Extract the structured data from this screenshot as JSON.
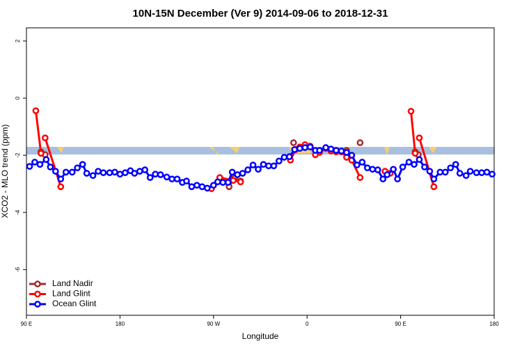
{
  "chart_data": {
    "type": "line",
    "title": "10N-15N December (Ver 9)   2014-09-06 to 2018-12-31",
    "x_label": "Longitude",
    "y_label": "XCO2 - MLO trend (ppm)",
    "xlim": [
      90,
      540
    ],
    "xticks": [
      {
        "value": 90,
        "label": "90 E"
      },
      180,
      {
        "value": 270,
        "label": "90 W"
      },
      {
        "value": 360,
        "label": "0"
      },
      {
        "value": 450,
        "label": "90 E"
      },
      {
        "value": 540,
        "label": "180"
      }
    ],
    "ylim": [
      -7.6,
      2.46
    ],
    "yticks": [
      2,
      0,
      -2,
      -4,
      -6
    ],
    "legend": "bottom-left",
    "series": [
      {
        "name": "Land Nadir",
        "color": "#a52a2a",
        "x": [
          104,
          108,
          null,
          285,
          290,
          296,
          null,
          347,
          null,
          398,
          null,
          411,
          null,
          464,
          467
        ],
        "values": [
          -1.88,
          -1.98,
          null,
          -3.1,
          -2.8,
          -2.9,
          null,
          -1.56,
          null,
          -1.83,
          null,
          -1.56,
          null,
          -1.88,
          -1.98
        ]
      },
      {
        "name": "Land Glint",
        "color": "#ff0000",
        "x": [
          99,
          104,
          null,
          108,
          123,
          null,
          268,
          276,
          289,
          296,
          null,
          344,
          349,
          353,
          358,
          363,
          368,
          372,
          378,
          383,
          388,
          393,
          398,
          403,
          411,
          null,
          435,
          440,
          null,
          460,
          464,
          null,
          468,
          482
        ],
        "values": [
          -0.44,
          -1.93,
          null,
          -1.39,
          -3.1,
          null,
          -3.17,
          -2.78,
          -2.88,
          -2.93,
          null,
          -2.17,
          -1.8,
          -1.71,
          -1.63,
          -1.68,
          -1.98,
          -1.9,
          -1.76,
          -1.85,
          -1.88,
          -1.88,
          -2.07,
          -2.17,
          -2.78,
          null,
          -2.56,
          -2.63,
          null,
          -0.46,
          -1.93,
          null,
          -1.39,
          -3.1
        ]
      },
      {
        "name": "Ocean Glint",
        "color": "#0000ff",
        "x": [
          93,
          98,
          103,
          109,
          113,
          118,
          123,
          128,
          134,
          139,
          144,
          148,
          154,
          159,
          164,
          170,
          175,
          180,
          185,
          190,
          194,
          199,
          204,
          209,
          214,
          219,
          225,
          230,
          235,
          240,
          244,
          249,
          254,
          259,
          264,
          270,
          274,
          279,
          284,
          288,
          293,
          298,
          303,
          308,
          313,
          318,
          323,
          328,
          333,
          338,
          343,
          348,
          353,
          358,
          363,
          368,
          372,
          378,
          383,
          388,
          393,
          398,
          403,
          408,
          413,
          418,
          423,
          428,
          433,
          437,
          443,
          447,
          452,
          458,
          463,
          468,
          473,
          478,
          482,
          488,
          493,
          498,
          503,
          507,
          513,
          517,
          523,
          528,
          533,
          538
        ],
        "values": [
          -2.39,
          -2.24,
          -2.32,
          -2.15,
          -2.41,
          -2.56,
          -2.83,
          -2.59,
          -2.59,
          -2.44,
          -2.32,
          -2.63,
          -2.71,
          -2.56,
          -2.61,
          -2.61,
          -2.59,
          -2.66,
          -2.61,
          -2.54,
          -2.63,
          -2.56,
          -2.51,
          -2.78,
          -2.66,
          -2.68,
          -2.76,
          -2.83,
          -2.83,
          -2.95,
          -2.9,
          -3.1,
          -3.05,
          -3.1,
          -3.15,
          -3.05,
          -2.93,
          -2.95,
          -2.95,
          -2.59,
          -2.68,
          -2.63,
          -2.51,
          -2.34,
          -2.49,
          -2.32,
          -2.37,
          -2.37,
          -2.2,
          -2.07,
          -2.05,
          -1.8,
          -1.76,
          -1.73,
          -1.71,
          -1.83,
          -1.83,
          -1.73,
          -1.78,
          -1.83,
          -1.85,
          -1.9,
          -2.0,
          -2.34,
          -2.24,
          -2.44,
          -2.49,
          -2.51,
          -2.83,
          -2.68,
          -2.49,
          -2.83,
          -2.41,
          -2.24,
          -2.32,
          -2.15,
          -2.41,
          -2.56,
          -2.83,
          -2.59,
          -2.59,
          -2.44,
          -2.32,
          -2.63,
          -2.71,
          -2.56,
          -2.61,
          -2.61,
          -2.59,
          -2.66
        ]
      }
    ]
  }
}
